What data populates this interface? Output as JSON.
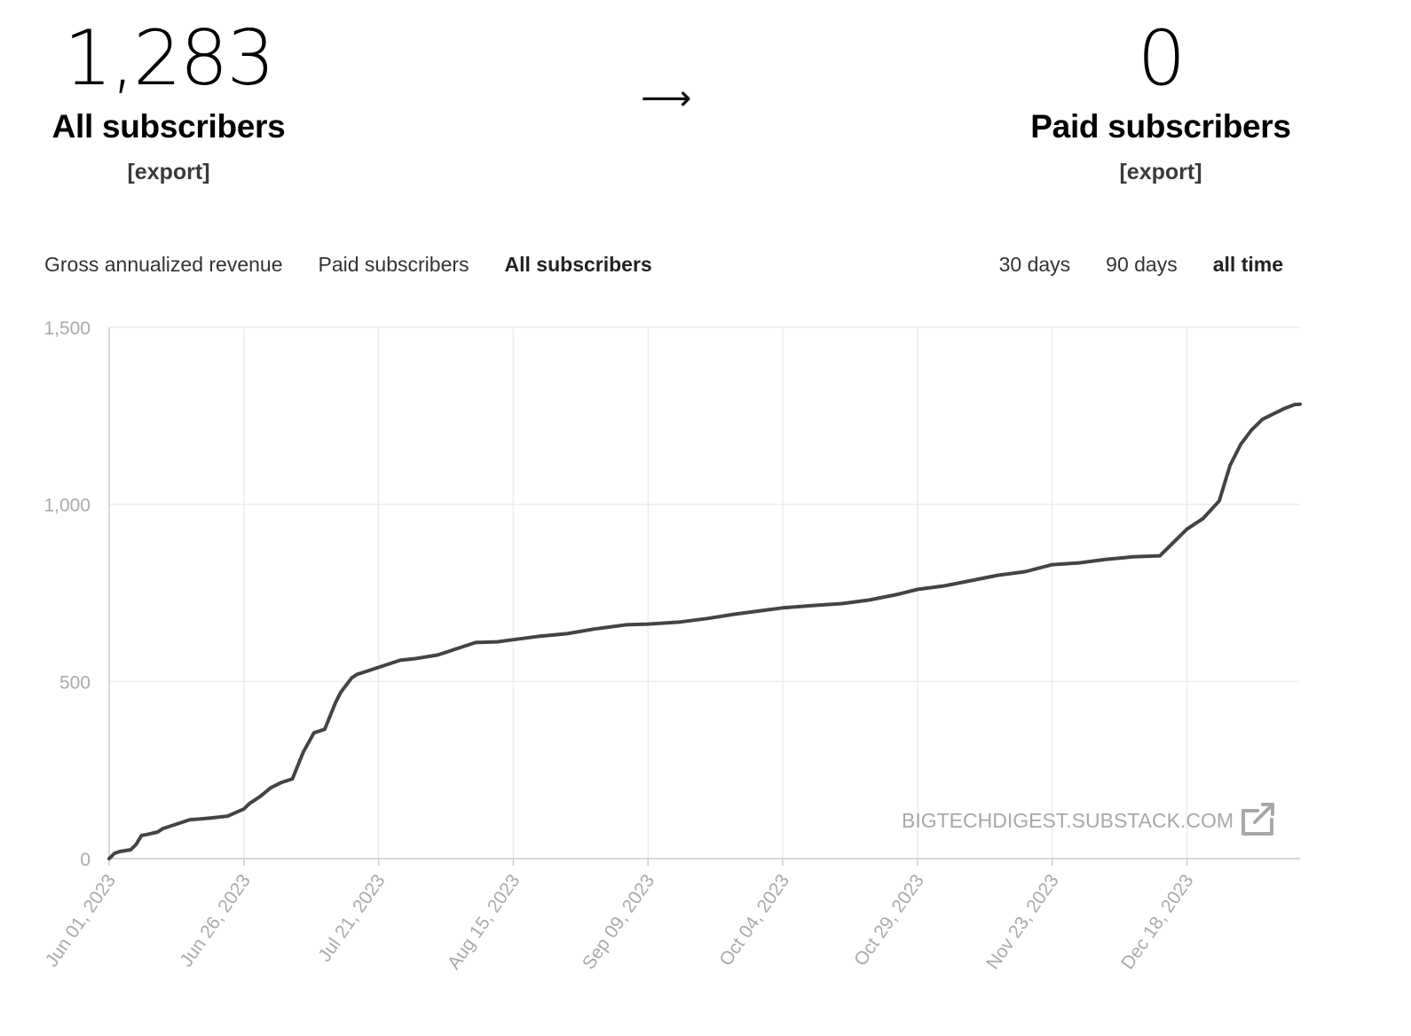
{
  "stats": {
    "all": {
      "value": "1,283",
      "label": "All subscribers",
      "export": "[export]"
    },
    "arrow": "⟶",
    "paid": {
      "value": "0",
      "label": "Paid subscribers",
      "export": "[export]"
    }
  },
  "tabs": [
    "Gross annualized revenue",
    "Paid subscribers",
    "All subscribers"
  ],
  "active_tab": "All subscribers",
  "ranges": [
    "30 days",
    "90 days",
    "all time"
  ],
  "active_range": "all time",
  "watermark": "BIGTECHDIGEST.SUBSTACK.COM",
  "colors": {
    "line": "#444444",
    "grid": "#ececec",
    "tick": "#aaaaaa"
  },
  "chart_data": {
    "type": "line",
    "ylim": [
      0,
      1500
    ],
    "yticks": [
      0,
      500,
      1000,
      1500
    ],
    "ytick_labels": [
      "0",
      "500",
      "1,000",
      "1,500"
    ],
    "xlim": [
      "2023-06-01",
      "2024-01-08"
    ],
    "xtick_dates": [
      "2023-06-01",
      "2023-06-26",
      "2023-07-21",
      "2023-08-15",
      "2023-09-09",
      "2023-10-04",
      "2023-10-29",
      "2023-11-23",
      "2023-12-18"
    ],
    "xtick_labels": [
      "Jun 01, 2023",
      "Jun 26, 2023",
      "Jul 21, 2023",
      "Aug 15, 2023",
      "Sep 09, 2023",
      "Oct 04, 2023",
      "Oct 29, 2023",
      "Nov 23, 2023",
      "Dec 18, 2023"
    ],
    "grid": true,
    "series": [
      {
        "x": [
          "2023-06-01",
          "2023-06-02",
          "2023-06-03",
          "2023-06-05",
          "2023-06-06",
          "2023-06-07",
          "2023-06-08",
          "2023-06-10",
          "2023-06-11",
          "2023-06-12",
          "2023-06-14",
          "2023-06-16",
          "2023-06-18",
          "2023-06-20",
          "2023-06-23",
          "2023-06-26",
          "2023-06-27",
          "2023-06-29",
          "2023-07-01",
          "2023-07-03",
          "2023-07-05",
          "2023-07-07",
          "2023-07-09",
          "2023-07-11",
          "2023-07-13",
          "2023-07-14",
          "2023-07-15",
          "2023-07-16",
          "2023-07-17",
          "2023-07-18",
          "2023-07-20",
          "2023-07-21",
          "2023-07-23",
          "2023-07-25",
          "2023-07-28",
          "2023-08-01",
          "2023-08-04",
          "2023-08-08",
          "2023-08-12",
          "2023-08-15",
          "2023-08-20",
          "2023-08-25",
          "2023-08-30",
          "2023-09-05",
          "2023-09-09",
          "2023-09-15",
          "2023-09-20",
          "2023-09-25",
          "2023-09-30",
          "2023-10-04",
          "2023-10-10",
          "2023-10-15",
          "2023-10-20",
          "2023-10-25",
          "2023-10-29",
          "2023-11-03",
          "2023-11-08",
          "2023-11-13",
          "2023-11-18",
          "2023-11-23",
          "2023-11-28",
          "2023-12-03",
          "2023-12-08",
          "2023-12-13",
          "2023-12-18",
          "2023-12-21",
          "2023-12-24",
          "2023-12-26",
          "2023-12-28",
          "2023-12-30",
          "2024-01-01",
          "2024-01-03",
          "2024-01-05",
          "2024-01-07",
          "2024-01-08"
        ],
        "values": [
          0,
          15,
          20,
          25,
          40,
          65,
          68,
          75,
          85,
          90,
          100,
          110,
          112,
          115,
          120,
          140,
          155,
          175,
          200,
          215,
          225,
          300,
          355,
          365,
          440,
          470,
          490,
          510,
          520,
          525,
          535,
          540,
          550,
          560,
          565,
          575,
          590,
          610,
          612,
          618,
          628,
          635,
          648,
          660,
          662,
          668,
          678,
          690,
          700,
          708,
          715,
          720,
          730,
          745,
          760,
          770,
          785,
          800,
          810,
          830,
          835,
          845,
          852,
          855,
          930,
          960,
          1010,
          1110,
          1170,
          1210,
          1240,
          1255,
          1270,
          1282,
          1283
        ]
      }
    ]
  }
}
